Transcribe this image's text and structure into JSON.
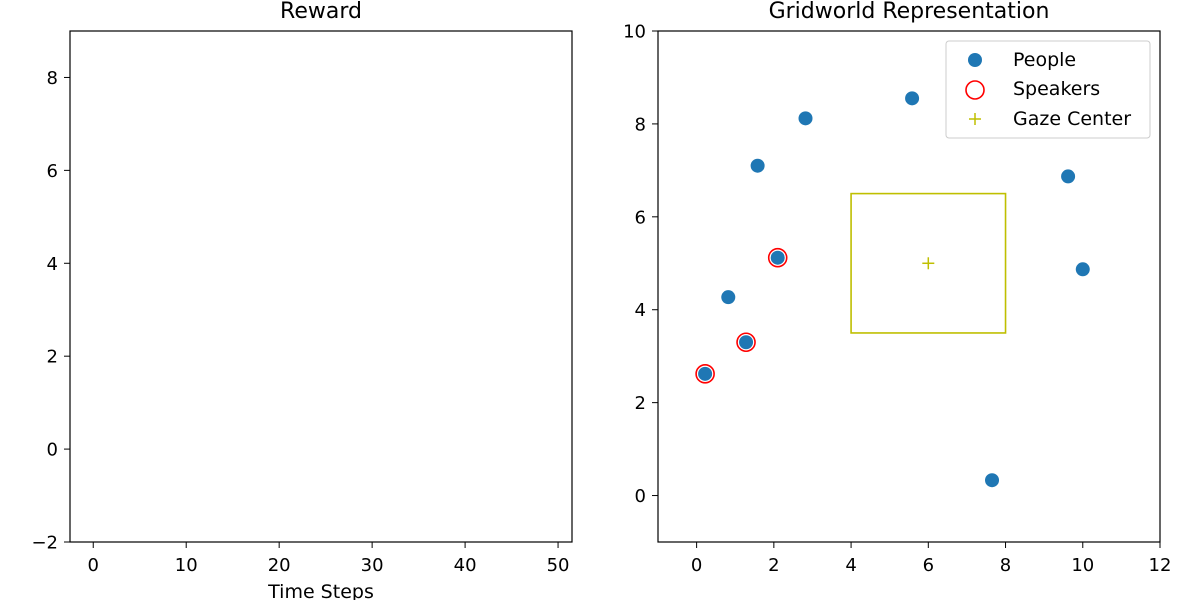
{
  "chart_data": [
    {
      "type": "line",
      "title": "Reward",
      "xlabel": "Time Steps",
      "ylabel": "",
      "xlim": [
        -2.5,
        51.5
      ],
      "ylim": [
        -2,
        9
      ],
      "xticks": [
        0,
        10,
        20,
        30,
        40,
        50
      ],
      "yticks": [
        -2,
        0,
        2,
        4,
        6,
        8
      ],
      "series": []
    },
    {
      "type": "scatter",
      "title": "Gridworld Representation",
      "xlabel": "",
      "ylabel": "",
      "xlim": [
        -1,
        12
      ],
      "ylim": [
        -1,
        10
      ],
      "xticks": [
        0,
        2,
        4,
        6,
        8,
        10,
        12
      ],
      "yticks": [
        0,
        2,
        4,
        6,
        8,
        10
      ],
      "legend_position": "top-right",
      "series": [
        {
          "name": "People",
          "marker": "filled-circle",
          "color": "#1f77b4",
          "points": [
            [
              0.22,
              2.62
            ],
            [
              1.28,
              3.3
            ],
            [
              0.82,
              4.27
            ],
            [
              2.1,
              5.12
            ],
            [
              1.58,
              7.1
            ],
            [
              2.82,
              8.12
            ],
            [
              5.58,
              8.55
            ],
            [
              9.62,
              6.87
            ],
            [
              10.0,
              4.87
            ],
            [
              7.65,
              0.33
            ]
          ]
        },
        {
          "name": "Speakers",
          "marker": "hollow-circle",
          "color": "#ff0000",
          "points": [
            [
              0.22,
              2.62
            ],
            [
              1.28,
              3.3
            ],
            [
              2.1,
              5.12
            ]
          ]
        },
        {
          "name": "Gaze Center",
          "marker": "plus",
          "color": "#bfbf00",
          "points": [
            [
              6,
              5
            ]
          ]
        }
      ],
      "gaze_box": {
        "x0": 4,
        "x1": 8,
        "y0": 3.5,
        "y1": 6.5,
        "color": "#bfbf00"
      }
    }
  ]
}
